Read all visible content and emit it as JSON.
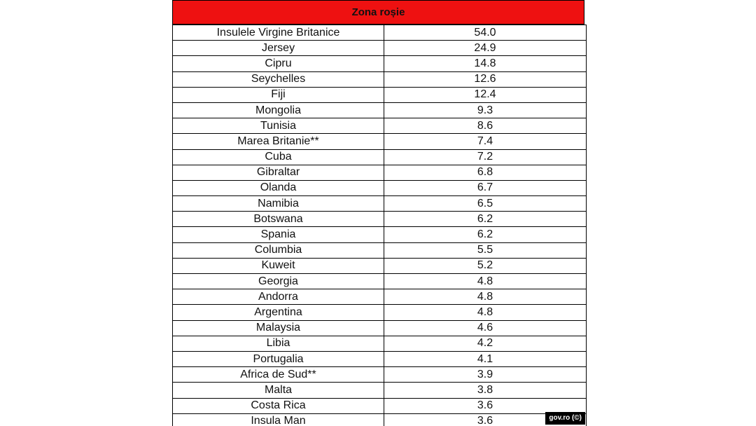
{
  "table": {
    "header": "Zona roșie",
    "rows": [
      {
        "country": "Insulele Virgine Britanice",
        "value": "54.0"
      },
      {
        "country": "Jersey",
        "value": "24.9"
      },
      {
        "country": "Cipru",
        "value": "14.8"
      },
      {
        "country": "Seychelles",
        "value": "12.6"
      },
      {
        "country": "Fiji",
        "value": "12.4"
      },
      {
        "country": "Mongolia",
        "value": "9.3"
      },
      {
        "country": "Tunisia",
        "value": "8.6"
      },
      {
        "country": "Marea Britanie**",
        "value": "7.4"
      },
      {
        "country": "Cuba",
        "value": "7.2"
      },
      {
        "country": "Gibraltar",
        "value": "6.8"
      },
      {
        "country": "Olanda",
        "value": "6.7"
      },
      {
        "country": "Namibia",
        "value": "6.5"
      },
      {
        "country": "Botswana",
        "value": "6.2"
      },
      {
        "country": "Spania",
        "value": "6.2"
      },
      {
        "country": "Columbia",
        "value": "5.5"
      },
      {
        "country": "Kuweit",
        "value": "5.2"
      },
      {
        "country": "Georgia",
        "value": "4.8"
      },
      {
        "country": "Andorra",
        "value": "4.8"
      },
      {
        "country": "Argentina",
        "value": "4.8"
      },
      {
        "country": "Malaysia",
        "value": "4.6"
      },
      {
        "country": "Libia",
        "value": "4.2"
      },
      {
        "country": "Portugalia",
        "value": "4.1"
      },
      {
        "country": "Africa de Sud**",
        "value": "3.9"
      },
      {
        "country": "Malta",
        "value": "3.8"
      },
      {
        "country": "Costa Rica",
        "value": "3.6"
      },
      {
        "country": "Insula Man",
        "value": "3.6"
      }
    ]
  },
  "credit": "gov.ro (©)",
  "colors": {
    "header_red": "#ee1111",
    "border": "#000000",
    "credit_bg": "#000000"
  }
}
